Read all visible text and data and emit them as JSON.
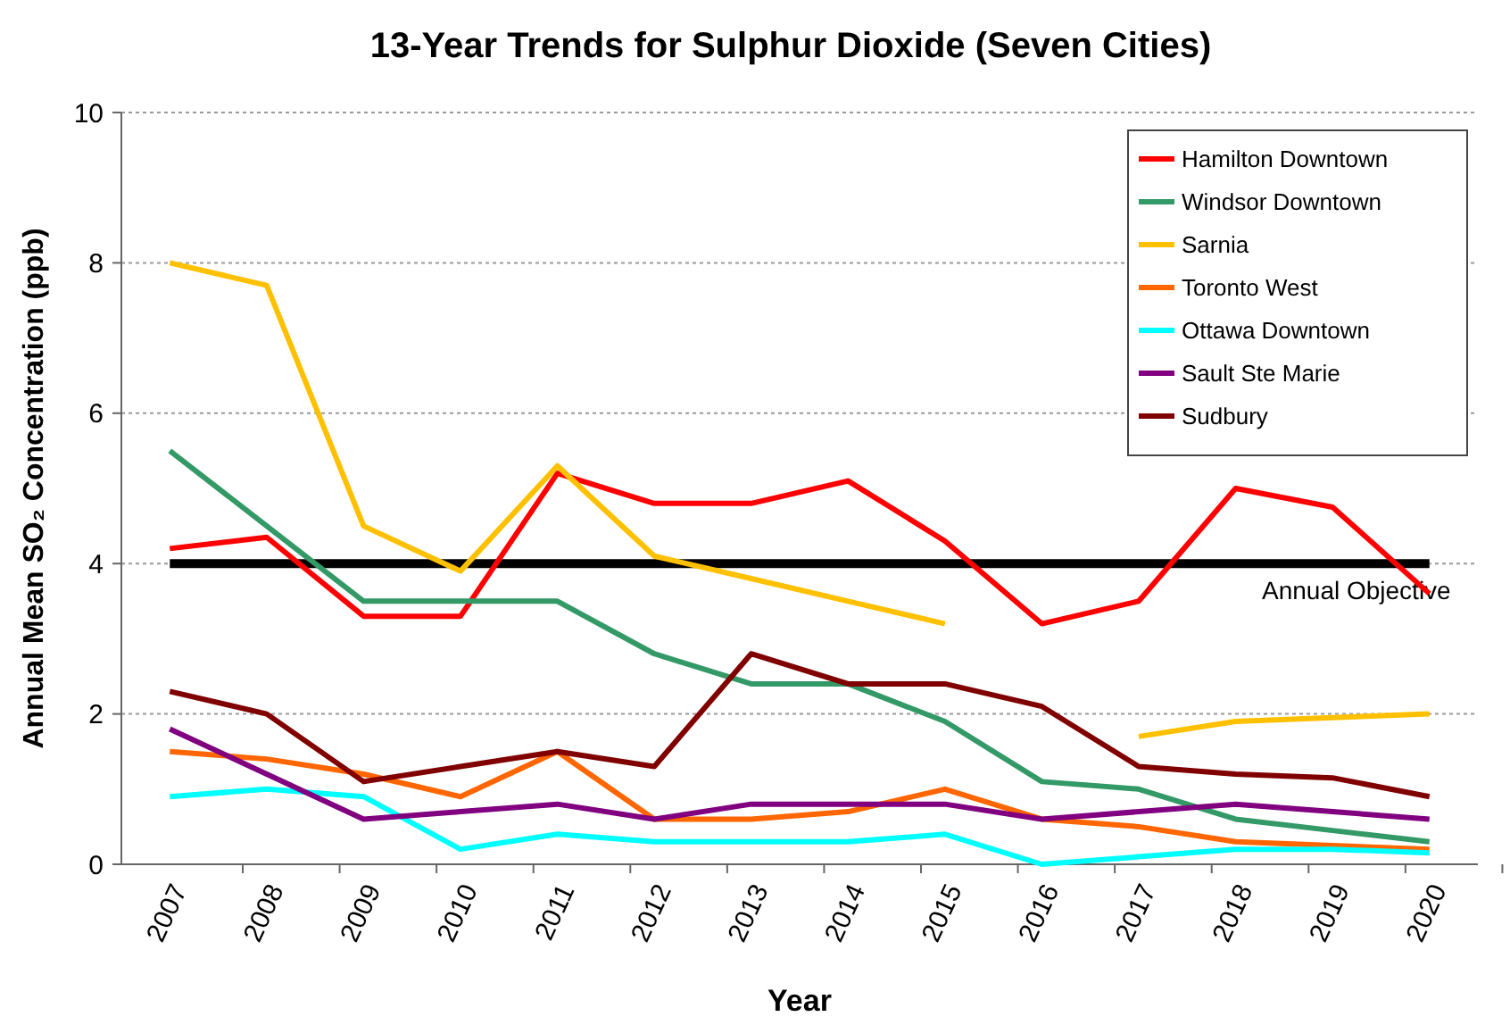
{
  "chart_data": {
    "type": "line",
    "title": "13-Year Trends for Sulphur Dioxide (Seven Cities)",
    "xlabel": "Year",
    "ylabel": "Annual Mean SO₂ Concentration (ppb)",
    "categories": [
      "2007",
      "2008",
      "2009",
      "2010",
      "2011",
      "2012",
      "2013",
      "2014",
      "2015",
      "2016",
      "2017",
      "2018",
      "2019",
      "2020"
    ],
    "series": [
      {
        "name": "Hamilton Downtown",
        "color": "#ff0000",
        "values": [
          4.2,
          4.35,
          3.3,
          3.3,
          5.2,
          4.8,
          4.8,
          5.1,
          4.3,
          3.2,
          3.5,
          5.0,
          4.75,
          3.6
        ]
      },
      {
        "name": "Windsor Downtown",
        "color": "#339966",
        "values": [
          5.5,
          4.5,
          3.5,
          3.5,
          3.5,
          2.8,
          2.4,
          2.4,
          1.9,
          1.1,
          1.0,
          0.6,
          0.45,
          0.3
        ]
      },
      {
        "name": "Sarnia",
        "color": "#ffc000",
        "values": [
          8.0,
          7.7,
          4.5,
          3.9,
          5.3,
          4.1,
          3.8,
          3.5,
          3.2,
          null,
          1.7,
          1.9,
          1.95,
          2.0
        ]
      },
      {
        "name": "Toronto West",
        "color": "#ff6600",
        "values": [
          1.5,
          1.4,
          1.2,
          0.9,
          1.5,
          0.6,
          0.6,
          0.7,
          1.0,
          0.6,
          0.5,
          0.3,
          0.25,
          0.2
        ]
      },
      {
        "name": "Ottawa Downtown",
        "color": "#00ffff",
        "values": [
          0.9,
          1.0,
          0.9,
          0.2,
          0.4,
          0.3,
          0.3,
          0.3,
          0.4,
          0.0,
          0.1,
          0.2,
          0.2,
          0.15
        ]
      },
      {
        "name": "Sault Ste Marie",
        "color": "#800080",
        "values": [
          1.8,
          1.2,
          0.6,
          0.7,
          0.8,
          0.6,
          0.8,
          0.8,
          0.8,
          0.6,
          0.7,
          0.8,
          0.7,
          0.6
        ]
      },
      {
        "name": "Sudbury",
        "color": "#800000",
        "values": [
          2.3,
          2.0,
          1.1,
          1.3,
          1.5,
          1.3,
          2.8,
          2.4,
          2.4,
          2.1,
          1.3,
          1.2,
          1.15,
          0.9
        ]
      }
    ],
    "ylim": [
      0,
      10
    ],
    "yticks": [
      0,
      2,
      4,
      6,
      8,
      10
    ],
    "grid": "y",
    "legend": "top right",
    "marker": "none",
    "line_style": "solid",
    "ref_lines": [
      {
        "axis": "y",
        "value": 4,
        "label": "Annual Objective",
        "color": "#000000"
      }
    ]
  }
}
